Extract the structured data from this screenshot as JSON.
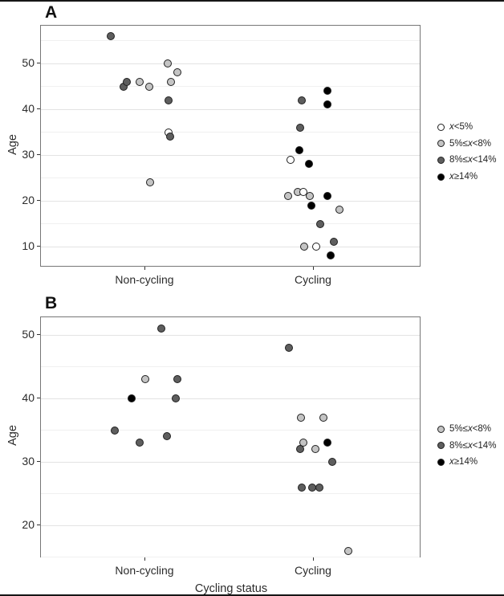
{
  "figure": {
    "x_axis_title": "Cycling status",
    "y_axis_title": "Age"
  },
  "palette": {
    "white": "#ffffff",
    "light_gray": "#c4c4c4",
    "dark_gray": "#5e5e5e",
    "black": "#000000",
    "point_stroke": "#1f1f1f",
    "grid_major": "#e3e3e3",
    "grid_minor": "#f0f0f0",
    "panel_border": "#777777"
  },
  "chart_data": [
    {
      "type": "scatter",
      "panel_label": "A",
      "ylabel": "Age",
      "xlabel": "",
      "categories": [
        "Non-cycling",
        "Cycling"
      ],
      "yticks": [
        10,
        20,
        30,
        40,
        50
      ],
      "ylim": [
        5.3,
        58.1
      ],
      "legend_position": "right",
      "legend": [
        {
          "label": "x<5%",
          "color": "white"
        },
        {
          "label": "5%≤x<8%",
          "color": "light_gray"
        },
        {
          "label": "8%≤x<14%",
          "color": "dark_gray"
        },
        {
          "label": "x≥14%",
          "color": "black"
        }
      ],
      "points": [
        {
          "category": "Non-cycling",
          "age": 56,
          "group": "8%≤x<14%",
          "color": "dark_gray",
          "dx": -43
        },
        {
          "category": "Non-cycling",
          "age": 45,
          "group": "8%≤x<14%",
          "color": "dark_gray",
          "dx": -27
        },
        {
          "category": "Non-cycling",
          "age": 46,
          "group": "8%≤x<14%",
          "color": "dark_gray",
          "dx": -23
        },
        {
          "category": "Non-cycling",
          "age": 46,
          "group": "5%≤x<8%",
          "color": "light_gray",
          "dx": -7
        },
        {
          "category": "Non-cycling",
          "age": 45,
          "group": "5%≤x<8%",
          "color": "light_gray",
          "dx": 5
        },
        {
          "category": "Non-cycling",
          "age": 50,
          "group": "5%≤x<8%",
          "color": "light_gray",
          "dx": 28
        },
        {
          "category": "Non-cycling",
          "age": 48,
          "group": "5%≤x<8%",
          "color": "light_gray",
          "dx": 40
        },
        {
          "category": "Non-cycling",
          "age": 46,
          "group": "5%≤x<8%",
          "color": "light_gray",
          "dx": 32
        },
        {
          "category": "Non-cycling",
          "age": 42,
          "group": "8%≤x<14%",
          "color": "dark_gray",
          "dx": 29
        },
        {
          "category": "Non-cycling",
          "age": 35,
          "group": "x<5%",
          "color": "white",
          "dx": 29
        },
        {
          "category": "Non-cycling",
          "age": 34,
          "group": "8%≤x<14%",
          "color": "dark_gray",
          "dx": 31
        },
        {
          "category": "Non-cycling",
          "age": 24,
          "group": "5%≤x<8%",
          "color": "light_gray",
          "dx": 6
        },
        {
          "category": "Cycling",
          "age": 44,
          "group": "x≥14%",
          "color": "black",
          "dx": 17
        },
        {
          "category": "Cycling",
          "age": 42,
          "group": "8%≤x<14%",
          "color": "dark_gray",
          "dx": -15
        },
        {
          "category": "Cycling",
          "age": 41,
          "group": "x≥14%",
          "color": "black",
          "dx": 17
        },
        {
          "category": "Cycling",
          "age": 36,
          "group": "8%≤x<14%",
          "color": "dark_gray",
          "dx": -17
        },
        {
          "category": "Cycling",
          "age": 31,
          "group": "x≥14%",
          "color": "black",
          "dx": -18
        },
        {
          "category": "Cycling",
          "age": 29,
          "group": "x<5%",
          "color": "white",
          "dx": -29
        },
        {
          "category": "Cycling",
          "age": 28,
          "group": "x≥14%",
          "color": "black",
          "dx": -6
        },
        {
          "category": "Cycling",
          "age": 21,
          "group": "5%≤x<8%",
          "color": "light_gray",
          "dx": -32
        },
        {
          "category": "Cycling",
          "age": 22,
          "group": "5%≤x<8%",
          "color": "light_gray",
          "dx": -20
        },
        {
          "category": "Cycling",
          "age": 22,
          "group": "x<5%",
          "color": "white",
          "dx": -13
        },
        {
          "category": "Cycling",
          "age": 21,
          "group": "5%≤x<8%",
          "color": "light_gray",
          "dx": -5
        },
        {
          "category": "Cycling",
          "age": 21,
          "group": "x≥14%",
          "color": "black",
          "dx": 17
        },
        {
          "category": "Cycling",
          "age": 19,
          "group": "x≥14%",
          "color": "black",
          "dx": -3
        },
        {
          "category": "Cycling",
          "age": 18,
          "group": "5%≤x<8%",
          "color": "light_gray",
          "dx": 32
        },
        {
          "category": "Cycling",
          "age": 15,
          "group": "8%≤x<14%",
          "color": "dark_gray",
          "dx": 8
        },
        {
          "category": "Cycling",
          "age": 11,
          "group": "8%≤x<14%",
          "color": "dark_gray",
          "dx": 25
        },
        {
          "category": "Cycling",
          "age": 10,
          "group": "5%≤x<8%",
          "color": "light_gray",
          "dx": -12
        },
        {
          "category": "Cycling",
          "age": 10,
          "group": "x<5%",
          "color": "white",
          "dx": 3
        },
        {
          "category": "Cycling",
          "age": 8,
          "group": "x≥14%",
          "color": "black",
          "dx": 21
        }
      ]
    },
    {
      "type": "scatter",
      "panel_label": "B",
      "ylabel": "Age",
      "xlabel": "Cycling status",
      "categories": [
        "Non-cycling",
        "Cycling"
      ],
      "yticks": [
        20,
        30,
        40,
        50
      ],
      "ylim": [
        14.8,
        52.8
      ],
      "legend_position": "right",
      "legend": [
        {
          "label": "5%≤x<8%",
          "color": "light_gray"
        },
        {
          "label": "8%≤x<14%",
          "color": "dark_gray"
        },
        {
          "label": "x≥14%",
          "color": "black"
        }
      ],
      "points": [
        {
          "category": "Non-cycling",
          "age": 51,
          "group": "8%≤x<14%",
          "color": "dark_gray",
          "dx": 20
        },
        {
          "category": "Non-cycling",
          "age": 43,
          "group": "5%≤x<8%",
          "color": "light_gray",
          "dx": 0
        },
        {
          "category": "Non-cycling",
          "age": 43,
          "group": "8%≤x<14%",
          "color": "dark_gray",
          "dx": 40
        },
        {
          "category": "Non-cycling",
          "age": 40,
          "group": "x≥14%",
          "color": "black",
          "dx": -17
        },
        {
          "category": "Non-cycling",
          "age": 40,
          "group": "8%≤x<14%",
          "color": "dark_gray",
          "dx": 38
        },
        {
          "category": "Non-cycling",
          "age": 35,
          "group": "8%≤x<14%",
          "color": "dark_gray",
          "dx": -38
        },
        {
          "category": "Non-cycling",
          "age": 34,
          "group": "8%≤x<14%",
          "color": "dark_gray",
          "dx": 27
        },
        {
          "category": "Non-cycling",
          "age": 33,
          "group": "8%≤x<14%",
          "color": "dark_gray",
          "dx": -7
        },
        {
          "category": "Cycling",
          "age": 48,
          "group": "8%≤x<14%",
          "color": "dark_gray",
          "dx": -31
        },
        {
          "category": "Cycling",
          "age": 37,
          "group": "5%≤x<8%",
          "color": "light_gray",
          "dx": -16
        },
        {
          "category": "Cycling",
          "age": 37,
          "group": "5%≤x<8%",
          "color": "light_gray",
          "dx": 12
        },
        {
          "category": "Cycling",
          "age": 33,
          "group": "5%≤x<8%",
          "color": "light_gray",
          "dx": -13
        },
        {
          "category": "Cycling",
          "age": 32,
          "group": "8%≤x<14%",
          "color": "dark_gray",
          "dx": -17
        },
        {
          "category": "Cycling",
          "age": 32,
          "group": "5%≤x<8%",
          "color": "light_gray",
          "dx": 2
        },
        {
          "category": "Cycling",
          "age": 33,
          "group": "x≥14%",
          "color": "black",
          "dx": 17
        },
        {
          "category": "Cycling",
          "age": 30,
          "group": "8%≤x<14%",
          "color": "dark_gray",
          "dx": 23
        },
        {
          "category": "Cycling",
          "age": 26,
          "group": "8%≤x<14%",
          "color": "dark_gray",
          "dx": -15
        },
        {
          "category": "Cycling",
          "age": 26,
          "group": "8%≤x<14%",
          "color": "dark_gray",
          "dx": -2
        },
        {
          "category": "Cycling",
          "age": 26,
          "group": "8%≤x<14%",
          "color": "dark_gray",
          "dx": 7
        },
        {
          "category": "Cycling",
          "age": 16,
          "group": "5%≤x<8%",
          "color": "light_gray",
          "dx": 43
        }
      ]
    }
  ]
}
